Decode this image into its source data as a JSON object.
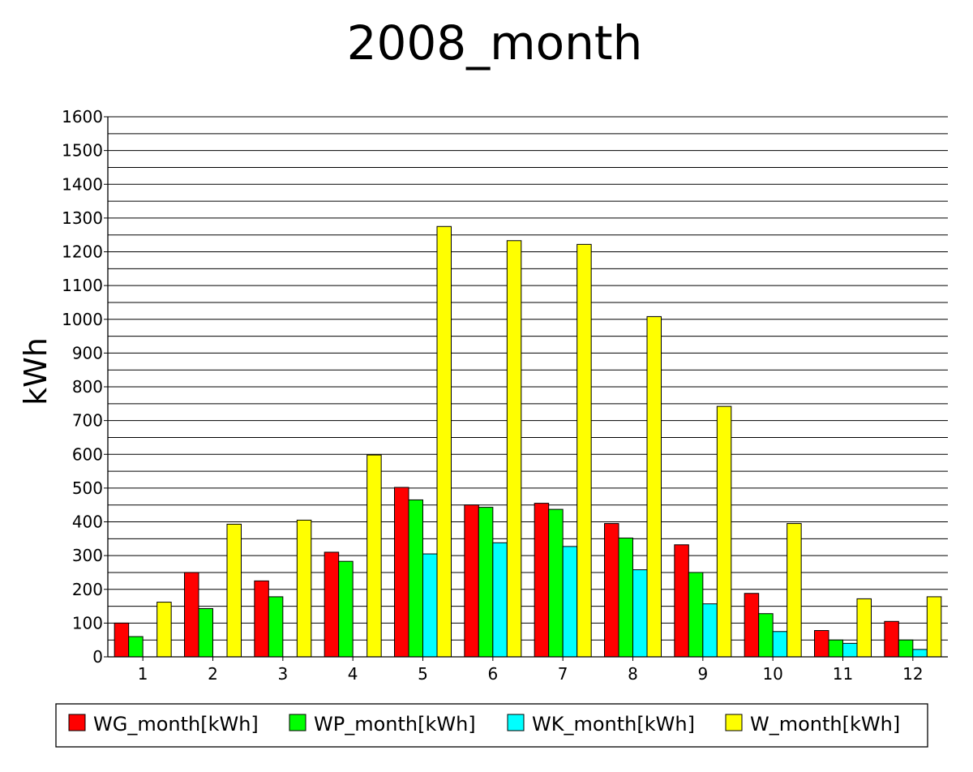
{
  "chart_data": {
    "type": "bar",
    "title": "2008_month",
    "xlabel": "",
    "ylabel": "kWh",
    "ylim": [
      0,
      1600
    ],
    "yticks": [
      0,
      100,
      200,
      300,
      400,
      500,
      600,
      700,
      800,
      900,
      1000,
      1100,
      1200,
      1300,
      1400,
      1500,
      1600
    ],
    "grid": true,
    "legend_position": "bottom",
    "categories": [
      "1",
      "2",
      "3",
      "4",
      "5",
      "6",
      "7",
      "8",
      "9",
      "10",
      "11",
      "12"
    ],
    "series": [
      {
        "name": "WG_month[kWh]",
        "color": "#ff0000",
        "values": [
          100,
          250,
          225,
          310,
          502,
          450,
          455,
          395,
          332,
          188,
          78,
          105
        ]
      },
      {
        "name": "WP_month[kWh]",
        "color": "#00ff00",
        "values": [
          60,
          143,
          178,
          283,
          465,
          443,
          437,
          352,
          250,
          128,
          50,
          50
        ]
      },
      {
        "name": "WK_month[kWh]",
        "color": "#00ffff",
        "values": [
          0,
          0,
          0,
          0,
          305,
          338,
          327,
          258,
          157,
          75,
          40,
          22
        ]
      },
      {
        "name": "W_month[kWh]",
        "color": "#ffff00",
        "values": [
          162,
          393,
          405,
          598,
          1275,
          1233,
          1222,
          1008,
          742,
          395,
          172,
          178
        ]
      }
    ]
  }
}
